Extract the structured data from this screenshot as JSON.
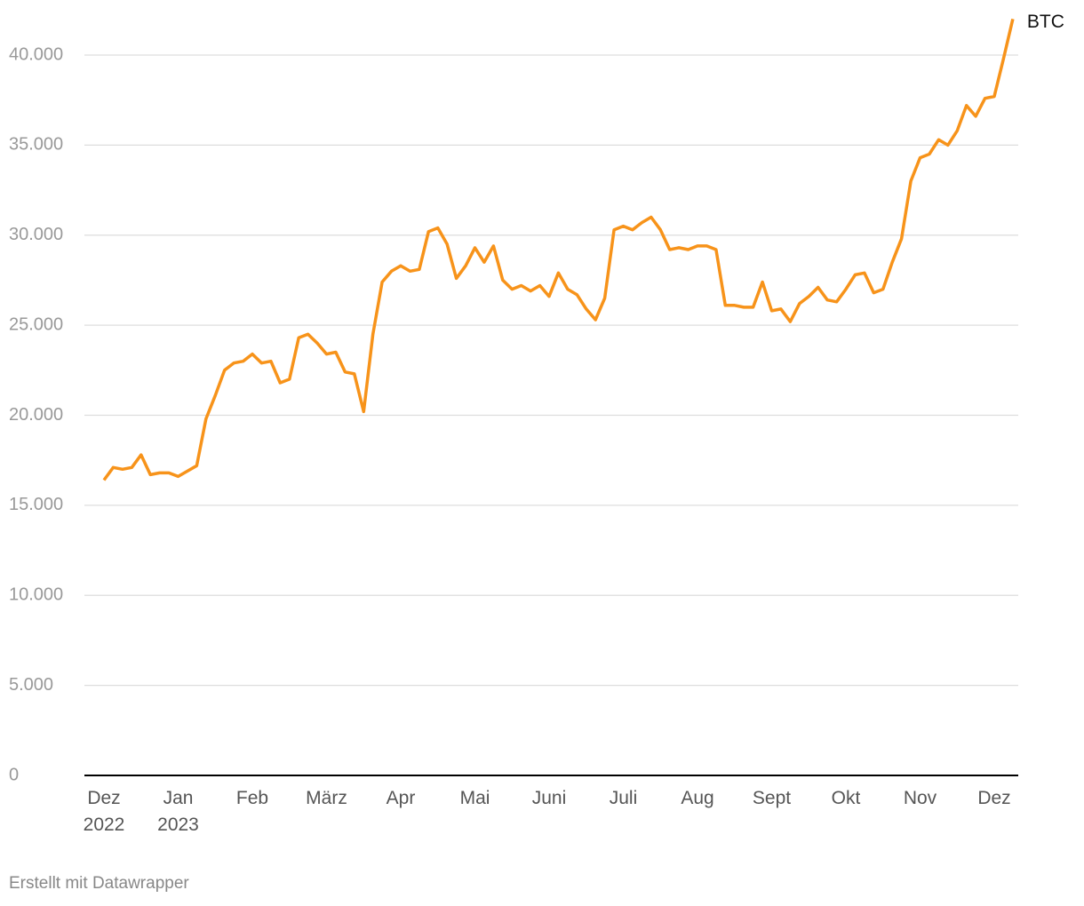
{
  "chart_data": {
    "type": "line",
    "categories": [
      "Dez\n2022",
      null,
      null,
      null,
      null,
      null,
      null,
      null,
      "Jan\n2023",
      null,
      null,
      null,
      null,
      null,
      null,
      null,
      "Feb",
      null,
      null,
      null,
      null,
      null,
      null,
      null,
      "März",
      null,
      null,
      null,
      null,
      null,
      null,
      null,
      "Apr",
      null,
      null,
      null,
      null,
      null,
      null,
      null,
      "Mai",
      null,
      null,
      null,
      null,
      null,
      null,
      null,
      "Juni",
      null,
      null,
      null,
      null,
      null,
      null,
      null,
      "Juli",
      null,
      null,
      null,
      null,
      null,
      null,
      null,
      "Aug",
      null,
      null,
      null,
      null,
      null,
      null,
      null,
      "Sept",
      null,
      null,
      null,
      null,
      null,
      null,
      null,
      "Okt",
      null,
      null,
      null,
      null,
      null,
      null,
      null,
      "Nov",
      null,
      null,
      null,
      null,
      null,
      null,
      null,
      "Dez",
      null,
      null
    ],
    "series": [
      {
        "name": "BTC",
        "color": "#f7931a",
        "values": [
          16400,
          17100,
          17000,
          17100,
          17800,
          16700,
          16800,
          16800,
          16600,
          16900,
          17200,
          19800,
          21100,
          22500,
          22900,
          23000,
          23400,
          22900,
          23000,
          21800,
          22000,
          24300,
          24500,
          24000,
          23400,
          23500,
          22400,
          22300,
          20200,
          24500,
          27400,
          28000,
          28300,
          28000,
          28100,
          30200,
          30400,
          29500,
          27600,
          28300,
          29300,
          28500,
          29400,
          27500,
          27000,
          27200,
          26900,
          27200,
          26600,
          27900,
          27000,
          26700,
          25900,
          25300,
          26500,
          30300,
          30500,
          30300,
          30700,
          31000,
          30300,
          29200,
          29300,
          29200,
          29400,
          29400,
          29200,
          26100,
          26100,
          26000,
          26000,
          27400,
          25800,
          25900,
          25200,
          26200,
          26600,
          27100,
          26400,
          26300,
          27000,
          27800,
          27900,
          26800,
          27000,
          28500,
          29800,
          33000,
          34300,
          34500,
          35300,
          35000,
          35800,
          37200,
          36600,
          37600,
          37700,
          39800,
          42000
        ]
      }
    ],
    "ylim": [
      0,
      40000
    ],
    "yticks": [
      {
        "value": 0,
        "label": "0"
      },
      {
        "value": 5000,
        "label": "5.000"
      },
      {
        "value": 10000,
        "label": "10.000"
      },
      {
        "value": 15000,
        "label": "15.000"
      },
      {
        "value": 20000,
        "label": "20.000"
      },
      {
        "value": 25000,
        "label": "25.000"
      },
      {
        "value": 30000,
        "label": "30.000"
      },
      {
        "value": 35000,
        "label": "35.000"
      },
      {
        "value": 40000,
        "label": "40.000"
      }
    ],
    "grid": true,
    "footer": "Erstellt mit Datawrapper"
  }
}
